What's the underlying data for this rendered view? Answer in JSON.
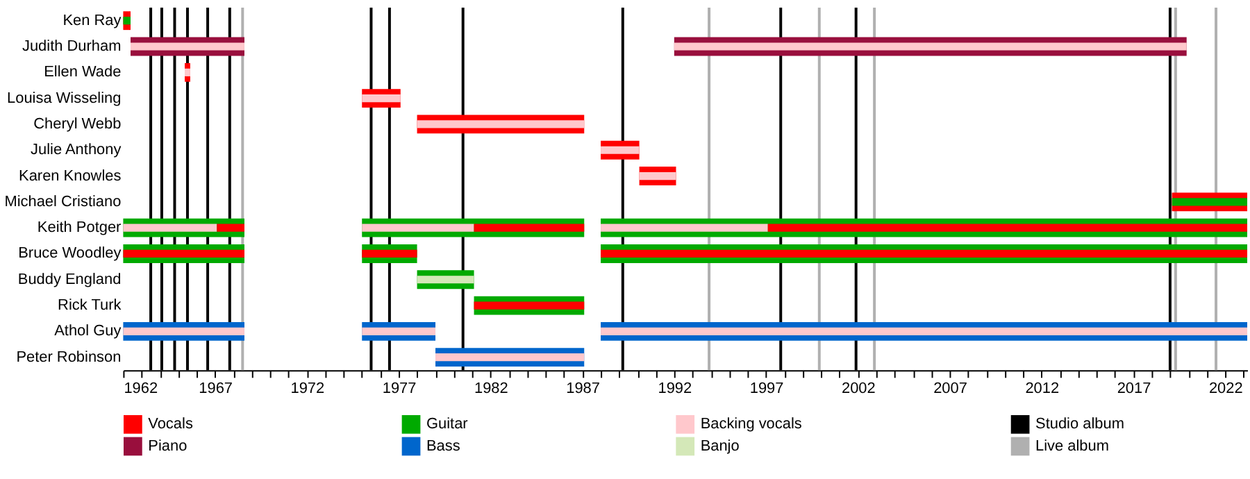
{
  "chart_data": {
    "type": "bar",
    "orientation": "horizontal",
    "categories": [
      "Ken Ray",
      "Judith Durham",
      "Ellen Wade",
      "Louisa Wisseling",
      "Cheryl Webb",
      "Julie Anthony",
      "Karen Knowles",
      "Michael Cristiano",
      "Keith Potger",
      "Bruce Woodley",
      "Buddy England",
      "Rick Turk",
      "Athol Guy",
      "Peter Robinson"
    ],
    "series": [
      {
        "name": "Vocals",
        "color": "#ff0000",
        "base": [
          1962,
          null,
          1965.35,
          1975,
          1978,
          1988,
          1990.1,
          2019.1,
          null,
          null,
          null,
          null,
          null,
          null
        ],
        "values": [
          0.4,
          null,
          0.3,
          2.1,
          9.1,
          2.1,
          2.0,
          4.1,
          null,
          null,
          null,
          null,
          null,
          null
        ]
      },
      {
        "name": "Piano",
        "color": "#990f3d",
        "base": [
          null,
          1962.4,
          null,
          null,
          null,
          null,
          null,
          null,
          null,
          null,
          null,
          null,
          null,
          null
        ],
        "values": [
          null,
          6.2,
          null,
          null,
          null,
          null,
          null,
          null,
          null,
          null,
          null,
          null,
          null,
          null
        ]
      },
      {
        "color": "#990f3d",
        "base": [
          null,
          1992,
          null,
          null,
          null,
          null,
          null,
          null,
          null,
          null,
          null,
          null,
          null,
          null
        ],
        "values": [
          null,
          27.9,
          null,
          null,
          null,
          null,
          null,
          null,
          null,
          null,
          null,
          null,
          null,
          null
        ]
      },
      {
        "name": "Guitar",
        "color": "#00aa00",
        "base": [
          null,
          null,
          null,
          null,
          null,
          null,
          null,
          null,
          1962,
          1962,
          1978,
          1981.1,
          null,
          null
        ],
        "values": [
          null,
          null,
          null,
          null,
          null,
          null,
          null,
          null,
          6.6,
          6.6,
          3.1,
          6.0,
          null,
          null
        ]
      },
      {
        "color": "#00aa00",
        "base": [
          null,
          null,
          null,
          null,
          null,
          null,
          null,
          null,
          1975,
          1975,
          null,
          null,
          null,
          null
        ],
        "values": [
          null,
          null,
          null,
          null,
          null,
          null,
          null,
          null,
          12.1,
          3.0,
          null,
          null,
          null,
          null
        ]
      },
      {
        "color": "#00aa00",
        "base": [
          null,
          null,
          null,
          null,
          null,
          null,
          null,
          null,
          1988,
          1988,
          null,
          null,
          null,
          null
        ],
        "values": [
          null,
          null,
          null,
          null,
          null,
          null,
          null,
          null,
          35.2,
          35.2,
          null,
          null,
          null,
          null
        ]
      },
      {
        "name": "Bass",
        "color": "#0066cc",
        "base": [
          null,
          null,
          null,
          null,
          null,
          null,
          null,
          null,
          null,
          null,
          null,
          null,
          1962,
          1979
        ],
        "values": [
          null,
          null,
          null,
          null,
          null,
          null,
          null,
          null,
          null,
          null,
          null,
          null,
          6.6,
          8.1
        ]
      },
      {
        "color": "#0066cc",
        "base": [
          null,
          null,
          null,
          null,
          null,
          null,
          null,
          null,
          null,
          null,
          null,
          null,
          1975,
          null
        ],
        "values": [
          null,
          null,
          null,
          null,
          null,
          null,
          null,
          null,
          null,
          null,
          null,
          null,
          4.0,
          null
        ]
      },
      {
        "color": "#0066cc",
        "base": [
          null,
          null,
          null,
          null,
          null,
          null,
          null,
          null,
          null,
          null,
          null,
          null,
          1988,
          null
        ],
        "values": [
          null,
          null,
          null,
          null,
          null,
          null,
          null,
          null,
          null,
          null,
          null,
          null,
          35.2,
          null
        ]
      },
      {
        "name": "Backing vocals",
        "color": "#ffc8cc",
        "base": [
          null,
          1962.4,
          1965.35,
          1975,
          1978,
          1988,
          1990.1,
          null,
          1962,
          null,
          null,
          null,
          1962,
          1979
        ],
        "values": [
          null,
          6.2,
          0.3,
          2.1,
          9.1,
          2.1,
          2.0,
          null,
          5.1,
          null,
          null,
          null,
          6.6,
          8.1
        ]
      },
      {
        "color": "#ffc8cc",
        "base": [
          null,
          1992,
          null,
          null,
          null,
          null,
          null,
          null,
          1975,
          null,
          null,
          null,
          1975,
          null
        ],
        "values": [
          null,
          27.9,
          null,
          null,
          null,
          null,
          null,
          null,
          6.1,
          null,
          null,
          null,
          4.0,
          null
        ]
      },
      {
        "color": "#ffc8cc",
        "base": [
          null,
          null,
          null,
          null,
          null,
          null,
          null,
          null,
          1988,
          null,
          null,
          null,
          1988,
          null
        ],
        "values": [
          null,
          null,
          null,
          null,
          null,
          null,
          null,
          null,
          9.1,
          null,
          null,
          null,
          35.2,
          null
        ]
      },
      {
        "color": "#ff0000",
        "base": [
          null,
          null,
          null,
          null,
          null,
          null,
          null,
          null,
          1967.1,
          1962,
          null,
          1981.1,
          null,
          null
        ],
        "values": [
          null,
          null,
          null,
          null,
          null,
          null,
          null,
          null,
          1.5,
          6.6,
          null,
          6.0,
          null,
          null
        ]
      },
      {
        "color": "#ff0000",
        "base": [
          null,
          null,
          null,
          null,
          null,
          null,
          null,
          null,
          1981.1,
          1975,
          null,
          null,
          null,
          null
        ],
        "values": [
          null,
          null,
          null,
          null,
          null,
          null,
          null,
          null,
          6.0,
          3.0,
          null,
          null,
          null,
          null
        ]
      },
      {
        "color": "#ff0000",
        "base": [
          null,
          null,
          null,
          null,
          null,
          null,
          null,
          null,
          1997.1,
          1988,
          null,
          null,
          null,
          null
        ],
        "values": [
          null,
          null,
          null,
          null,
          null,
          null,
          null,
          null,
          26.1,
          35.2,
          null,
          null,
          null,
          null
        ]
      },
      {
        "name": "Banjo",
        "color": "#d4e8b8",
        "base": [
          null,
          null,
          null,
          null,
          null,
          null,
          null,
          null,
          null,
          null,
          1978,
          null,
          null,
          null
        ],
        "values": [
          null,
          null,
          null,
          null,
          null,
          null,
          null,
          null,
          null,
          null,
          3.1,
          null,
          null,
          null
        ]
      },
      {
        "color": "#00aa00",
        "base": [
          1962,
          null,
          null,
          null,
          null,
          null,
          null,
          2019.1,
          null,
          null,
          null,
          null,
          null,
          null
        ],
        "values": [
          0.4,
          null,
          null,
          null,
          null,
          null,
          null,
          4.1,
          null,
          null,
          null,
          null,
          null,
          null
        ]
      }
    ],
    "xlim": [
      1962,
      2023.2
    ],
    "xticks": [
      1962,
      {
        "value": 1963,
        "label": null
      },
      {
        "value": 1964,
        "label": null
      },
      {
        "value": 1965,
        "label": null
      },
      {
        "value": 1966,
        "label": null
      },
      1967,
      {
        "value": 1968,
        "label": null
      },
      {
        "value": 1969,
        "label": null
      },
      {
        "value": 1970,
        "label": null
      },
      {
        "value": 1971,
        "label": null
      },
      1972,
      {
        "value": 1973,
        "label": null
      },
      {
        "value": 1974,
        "label": null
      },
      {
        "value": 1975,
        "label": null
      },
      {
        "value": 1976,
        "label": null
      },
      1977,
      {
        "value": 1978,
        "label": null
      },
      {
        "value": 1979,
        "label": null
      },
      {
        "value": 1980,
        "label": null
      },
      {
        "value": 1981,
        "label": null
      },
      1982,
      {
        "value": 1983,
        "label": null
      },
      {
        "value": 1984,
        "label": null
      },
      {
        "value": 1985,
        "label": null
      },
      {
        "value": 1986,
        "label": null
      },
      1987,
      {
        "value": 1988,
        "label": null
      },
      {
        "value": 1989,
        "label": null
      },
      {
        "value": 1990,
        "label": null
      },
      {
        "value": 1991,
        "label": null
      },
      1992,
      {
        "value": 1993,
        "label": null
      },
      {
        "value": 1994,
        "label": null
      },
      {
        "value": 1995,
        "label": null
      },
      {
        "value": 1996,
        "label": null
      },
      1997,
      {
        "value": 1998,
        "label": null
      },
      {
        "value": 1999,
        "label": null
      },
      {
        "value": 2000,
        "label": null
      },
      {
        "value": 2001,
        "label": null
      },
      2002,
      {
        "value": 2003,
        "label": null
      },
      {
        "value": 2004,
        "label": null
      },
      {
        "value": 2005,
        "label": null
      },
      {
        "value": 2006,
        "label": null
      },
      2007,
      {
        "value": 2008,
        "label": null
      },
      {
        "value": 2009,
        "label": null
      },
      {
        "value": 2010,
        "label": null
      },
      {
        "value": 2011,
        "label": null
      },
      2012,
      {
        "value": 2013,
        "label": null
      },
      {
        "value": 2014,
        "label": null
      },
      {
        "value": 2015,
        "label": null
      },
      {
        "value": 2016,
        "label": null
      },
      2017,
      {
        "value": 2018,
        "label": null
      },
      {
        "value": 2019,
        "label": null
      },
      {
        "value": 2020,
        "label": null
      },
      {
        "value": 2021,
        "label": null
      },
      2022,
      {
        "value": 2023,
        "label": null
      }
    ],
    "ref_lines": [
      {
        "axis": "x",
        "value": 1963.5,
        "label": "Studio album",
        "color": "#000000"
      },
      {
        "axis": "x",
        "value": 1964.1,
        "color": "#000000"
      },
      {
        "axis": "x",
        "value": 1964.8,
        "color": "#000000"
      },
      {
        "axis": "x",
        "value": 1965.5,
        "color": "#000000"
      },
      {
        "axis": "x",
        "value": 1966.6,
        "color": "#000000"
      },
      {
        "axis": "x",
        "value": 1967.8,
        "color": "#000000"
      },
      {
        "axis": "x",
        "value": 1975.5,
        "color": "#000000"
      },
      {
        "axis": "x",
        "value": 1976.5,
        "color": "#000000"
      },
      {
        "axis": "x",
        "value": 1980.5,
        "color": "#000000"
      },
      {
        "axis": "x",
        "value": 1989.2,
        "color": "#000000"
      },
      {
        "axis": "x",
        "value": 1997.8,
        "color": "#000000"
      },
      {
        "axis": "x",
        "value": 2001.9,
        "color": "#000000"
      },
      {
        "axis": "x",
        "value": 2019.0,
        "color": "#000000"
      },
      {
        "axis": "x",
        "value": 1968.5,
        "label": "Live album",
        "color": "#b0b0b0"
      },
      {
        "axis": "x",
        "value": 1993.9,
        "color": "#b0b0b0"
      },
      {
        "axis": "x",
        "value": 1999.9,
        "color": "#b0b0b0"
      },
      {
        "axis": "x",
        "value": 2002.9,
        "color": "#b0b0b0"
      },
      {
        "axis": "x",
        "value": 2019.3,
        "color": "#b0b0b0"
      },
      {
        "axis": "x",
        "value": 2021.5,
        "color": "#b0b0b0"
      }
    ],
    "legend": "bottom"
  }
}
